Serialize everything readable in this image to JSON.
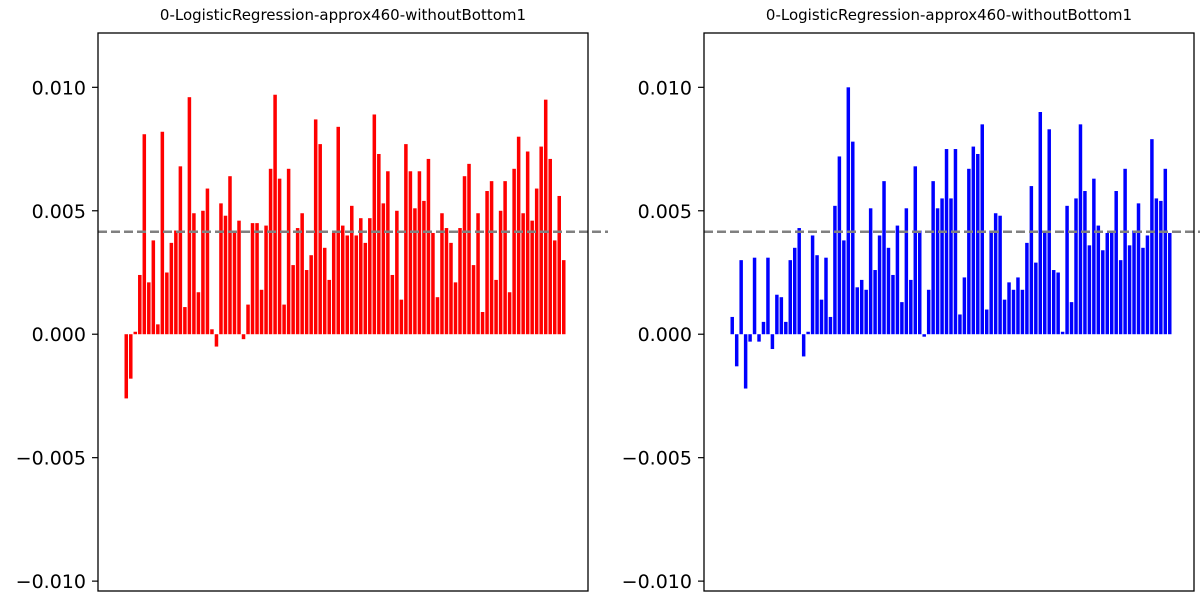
{
  "chart_data": [
    {
      "type": "bar",
      "title": "0-LogisticRegression-approx460-withoutBottom1",
      "xlabel": "",
      "ylabel": "",
      "ylim": [
        -0.0104,
        0.0122
      ],
      "yticks": [
        -0.01,
        -0.005,
        0.0,
        0.005,
        0.01
      ],
      "ytick_labels": [
        "−0.010",
        "−0.005",
        "0.000",
        "0.005",
        "0.010"
      ],
      "xticks_visible": false,
      "grid": false,
      "bar_color": "#ff0000",
      "reference_line": {
        "y": 0.00415,
        "style": "dashed",
        "color": "#808080"
      },
      "values": [
        -0.0026,
        -0.0018,
        0.0001,
        0.0024,
        0.0081,
        0.0021,
        0.0038,
        0.0004,
        0.0082,
        0.0025,
        0.0037,
        0.0042,
        0.0068,
        0.0011,
        0.0096,
        0.0049,
        0.0017,
        0.005,
        0.0059,
        0.0002,
        -0.0005,
        0.0053,
        0.0048,
        0.0064,
        0.0042,
        0.0046,
        -0.0002,
        0.0012,
        0.0045,
        0.0045,
        0.0018,
        0.0044,
        0.0067,
        0.0097,
        0.0063,
        0.0012,
        0.0067,
        0.0028,
        0.0043,
        0.0049,
        0.0026,
        0.0032,
        0.0087,
        0.0077,
        0.0035,
        0.0022,
        0.0041,
        0.0084,
        0.0044,
        0.004,
        0.0052,
        0.004,
        0.0047,
        0.0037,
        0.0047,
        0.0089,
        0.0073,
        0.0053,
        0.0066,
        0.0024,
        0.005,
        0.0014,
        0.0077,
        0.0066,
        0.0051,
        0.0066,
        0.0054,
        0.0071,
        0.0041,
        0.0015,
        0.0049,
        0.0043,
        0.0037,
        0.0021,
        0.0043,
        0.0064,
        0.0069,
        0.0028,
        0.0049,
        0.0009,
        0.0058,
        0.0062,
        0.0022,
        0.005,
        0.0062,
        0.0017,
        0.0067,
        0.008,
        0.0049,
        0.0074,
        0.0046,
        0.0059,
        0.0076,
        0.0095,
        0.0071,
        0.0038,
        0.0056,
        0.003
      ]
    },
    {
      "type": "bar",
      "title": "0-LogisticRegression-approx460-withoutBottom1",
      "xlabel": "",
      "ylabel": "",
      "ylim": [
        -0.0104,
        0.0122
      ],
      "yticks": [
        -0.01,
        -0.005,
        0.0,
        0.005,
        0.01
      ],
      "ytick_labels": [
        "−0.010",
        "−0.005",
        "0.000",
        "0.005",
        "0.010"
      ],
      "xticks_visible": false,
      "grid": false,
      "bar_color": "#0000ff",
      "reference_line": {
        "y": 0.00415,
        "style": "dashed",
        "color": "#808080"
      },
      "values": [
        0.0007,
        -0.0013,
        0.003,
        -0.0022,
        -0.0003,
        0.0031,
        -0.0003,
        0.0005,
        0.0031,
        -0.0006,
        0.0016,
        0.0015,
        0.0005,
        0.003,
        0.0035,
        0.0043,
        -0.0009,
        0.0001,
        0.004,
        0.0032,
        0.0014,
        0.0031,
        0.0007,
        0.0052,
        0.0072,
        0.0038,
        0.01,
        0.0078,
        0.0019,
        0.0022,
        0.0018,
        0.0051,
        0.0026,
        0.004,
        0.0062,
        0.0035,
        0.0024,
        0.0044,
        0.0013,
        0.0051,
        0.0022,
        0.0068,
        0.0042,
        -0.0001,
        0.0018,
        0.0062,
        0.0051,
        0.0055,
        0.0075,
        0.0055,
        0.0075,
        0.0008,
        0.0023,
        0.0067,
        0.0076,
        0.0073,
        0.0085,
        0.001,
        0.0042,
        0.0049,
        0.0048,
        0.0014,
        0.0021,
        0.0018,
        0.0023,
        0.0018,
        0.0037,
        0.006,
        0.0029,
        0.009,
        0.0042,
        0.0083,
        0.0026,
        0.0025,
        0.0001,
        0.0052,
        0.0013,
        0.0055,
        0.0085,
        0.0058,
        0.0036,
        0.0063,
        0.0044,
        0.0034,
        0.0041,
        0.0041,
        0.0058,
        0.003,
        0.0067,
        0.0036,
        0.0042,
        0.0053,
        0.0035,
        0.004,
        0.0079,
        0.0055,
        0.0054,
        0.0067,
        0.0041
      ]
    }
  ]
}
